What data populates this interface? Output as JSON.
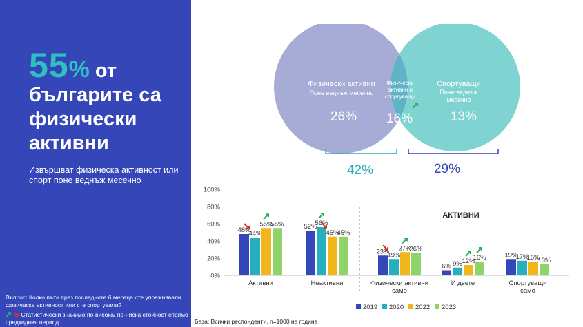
{
  "headline": {
    "value": "55",
    "percent_sign": "%",
    "line1_rest": " от",
    "line2": "българите са",
    "line3": "физически",
    "line4": "активни"
  },
  "subheadline": "Извършват физическа активност или спорт поне веднъж месечно",
  "question": "Въпрос: Колко пъти през последните 6 месеца сте упражнявали физическа активност или сте спортували?",
  "significance_note": "Статистически значимо по-висока/ по-ниска стойност спрямо предходния период",
  "base_note": "База: Всички респонденти, n=1000 на година",
  "venn": {
    "left_title": "Физически активни",
    "left_sub": "Поне веднъж месечно",
    "left_value": "26%",
    "overlap_title_1": "Физически",
    "overlap_title_2": "активни и",
    "overlap_title_3": "спортуващи",
    "overlap_value": "16%",
    "right_title": "Спортуващи",
    "right_sub_1": "Поне веднъж",
    "right_sub_2": "месечно",
    "right_value": "13%",
    "left_total": "42%",
    "right_total": "29%",
    "colors": {
      "left": "#a6acd6",
      "right": "#7fd3d1",
      "overlap": "#5fb3c6"
    }
  },
  "chart_data": {
    "type": "bar",
    "title": "АКТИВНИ",
    "categories": [
      "Активни",
      "Неактивни",
      "Физически активни само",
      "И двете",
      "Спортуващи само"
    ],
    "series": [
      {
        "name": "2019",
        "color": "#3446b8",
        "values": [
          48,
          52,
          23,
          6,
          19
        ]
      },
      {
        "name": "2020",
        "color": "#26b0bf",
        "values": [
          44,
          56,
          19,
          9,
          17
        ]
      },
      {
        "name": "2022",
        "color": "#f2b61d",
        "values": [
          55,
          45,
          27,
          12,
          16
        ]
      },
      {
        "name": "2023",
        "color": "#8fd36b",
        "values": [
          55,
          45,
          26,
          16,
          13
        ]
      }
    ],
    "ylim": [
      0,
      100
    ],
    "yticks": [
      "0%",
      "20%",
      "40%",
      "60%",
      "80%",
      "100%"
    ],
    "value_suffix": "%",
    "legend_position": "bottom",
    "significance_markers": [
      {
        "category": 0,
        "series": 1,
        "direction": "down"
      },
      {
        "category": 0,
        "series": 2,
        "direction": "up"
      },
      {
        "category": 1,
        "series": 1,
        "direction": "up"
      },
      {
        "category": 1,
        "series": 2,
        "direction": "down"
      },
      {
        "category": 2,
        "series": 1,
        "direction": "down"
      },
      {
        "category": 2,
        "series": 2,
        "direction": "up"
      },
      {
        "category": 3,
        "series": 2,
        "direction": "up"
      },
      {
        "category": 3,
        "series": 3,
        "direction": "up"
      }
    ]
  }
}
